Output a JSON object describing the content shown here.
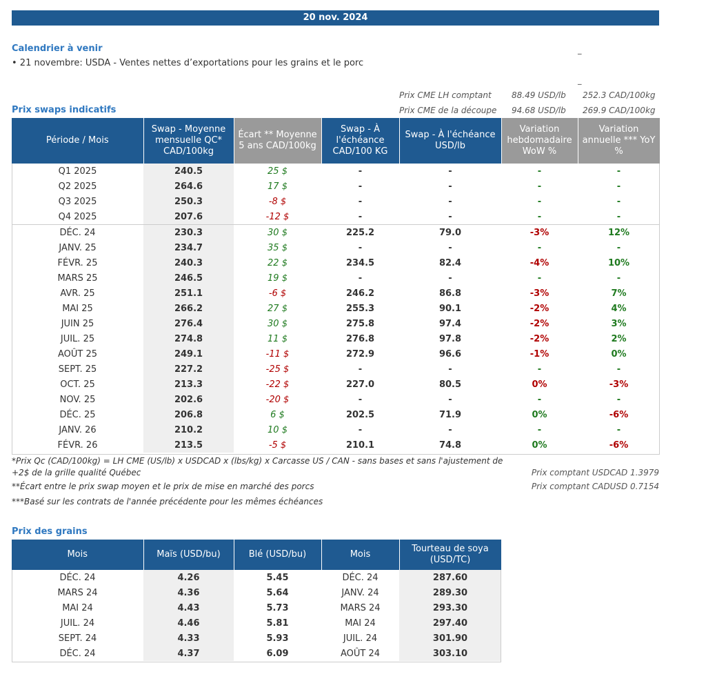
{
  "banner": {
    "date": "20 nov. 2024"
  },
  "calendar": {
    "title": "Calendrier à venir",
    "item": "• 21 novembre: USDA - Ventes nettes d’exportations pour les grains et le porc"
  },
  "reference": {
    "lh_label": "Prix CME LH comptant",
    "lh_usd": "88.49 USD/lb",
    "lh_cad": "252.3 CAD/100kg",
    "cut_label": "Prix CME de la découpe",
    "cut_usd": "94.68 USD/lb",
    "cut_cad": "269.9 CAD/100kg"
  },
  "swaps": {
    "title": "Prix swaps indicatifs",
    "headers": [
      "Période / Mois",
      "Swap - Moyenne mensuelle QC* CAD/100kg",
      "Écart ** Moyenne 5 ans CAD/100kg",
      "Swap - À l'échéance CAD/100 KG",
      "Swap - À l'échéance USD/lb",
      "Variation hebdomadaire WoW %",
      "Variation annuelle *** YoY %"
    ],
    "rows": [
      {
        "p": "Q1 2025",
        "swap": "240.5",
        "ecart": "25 $",
        "ecart_sign": "pos",
        "cad": "-",
        "usd": "-",
        "wow": "-",
        "wow_sign": "pos",
        "yoy": "-",
        "yoy_sign": "pos"
      },
      {
        "p": "Q2 2025",
        "swap": "264.6",
        "ecart": "17 $",
        "ecart_sign": "pos",
        "cad": "-",
        "usd": "-",
        "wow": "-",
        "wow_sign": "pos",
        "yoy": "-",
        "yoy_sign": "pos"
      },
      {
        "p": "Q3 2025",
        "swap": "250.3",
        "ecart": "-8 $",
        "ecart_sign": "neg",
        "cad": "-",
        "usd": "-",
        "wow": "-",
        "wow_sign": "pos",
        "yoy": "-",
        "yoy_sign": "pos"
      },
      {
        "p": "Q4 2025",
        "swap": "207.6",
        "ecart": "-12 $",
        "ecart_sign": "neg",
        "cad": "-",
        "usd": "-",
        "wow": "-",
        "wow_sign": "pos",
        "yoy": "-",
        "yoy_sign": "pos"
      },
      {
        "p": "DÉC. 24",
        "swap": "230.3",
        "ecart": "30 $",
        "ecart_sign": "pos",
        "cad": "225.2",
        "usd": "79.0",
        "wow": "-3%",
        "wow_sign": "neg",
        "yoy": "12%",
        "yoy_sign": "pos",
        "sep": true
      },
      {
        "p": "JANV. 25",
        "swap": "234.7",
        "ecart": "35 $",
        "ecart_sign": "pos",
        "cad": "-",
        "usd": "-",
        "wow": "-",
        "wow_sign": "pos",
        "yoy": "-",
        "yoy_sign": "pos"
      },
      {
        "p": "FÉVR. 25",
        "swap": "240.3",
        "ecart": "22 $",
        "ecart_sign": "pos",
        "cad": "234.5",
        "usd": "82.4",
        "wow": "-4%",
        "wow_sign": "neg",
        "yoy": "10%",
        "yoy_sign": "pos"
      },
      {
        "p": "MARS 25",
        "swap": "246.5",
        "ecart": "19 $",
        "ecart_sign": "pos",
        "cad": "-",
        "usd": "-",
        "wow": "-",
        "wow_sign": "pos",
        "yoy": "-",
        "yoy_sign": "pos"
      },
      {
        "p": "AVR. 25",
        "swap": "251.1",
        "ecart": "-6 $",
        "ecart_sign": "neg",
        "cad": "246.2",
        "usd": "86.8",
        "wow": "-3%",
        "wow_sign": "neg",
        "yoy": "7%",
        "yoy_sign": "pos"
      },
      {
        "p": "MAI 25",
        "swap": "266.2",
        "ecart": "27 $",
        "ecart_sign": "pos",
        "cad": "255.3",
        "usd": "90.1",
        "wow": "-2%",
        "wow_sign": "neg",
        "yoy": "4%",
        "yoy_sign": "pos"
      },
      {
        "p": "JUIN 25",
        "swap": "276.4",
        "ecart": "30 $",
        "ecart_sign": "pos",
        "cad": "275.8",
        "usd": "97.4",
        "wow": "-2%",
        "wow_sign": "neg",
        "yoy": "3%",
        "yoy_sign": "pos"
      },
      {
        "p": "JUIL. 25",
        "swap": "274.8",
        "ecart": "11 $",
        "ecart_sign": "pos",
        "cad": "276.8",
        "usd": "97.8",
        "wow": "-2%",
        "wow_sign": "neg",
        "yoy": "2%",
        "yoy_sign": "pos"
      },
      {
        "p": "AOÛT 25",
        "swap": "249.1",
        "ecart": "-11 $",
        "ecart_sign": "neg",
        "cad": "272.9",
        "usd": "96.6",
        "wow": "-1%",
        "wow_sign": "neg",
        "yoy": "0%",
        "yoy_sign": "pos"
      },
      {
        "p": "SEPT. 25",
        "swap": "227.2",
        "ecart": "-25 $",
        "ecart_sign": "neg",
        "cad": "-",
        "usd": "-",
        "wow": "-",
        "wow_sign": "pos",
        "yoy": "-",
        "yoy_sign": "pos"
      },
      {
        "p": "OCT. 25",
        "swap": "213.3",
        "ecart": "-22 $",
        "ecart_sign": "neg",
        "cad": "227.0",
        "usd": "80.5",
        "wow": "0%",
        "wow_sign": "neg",
        "yoy": "-3%",
        "yoy_sign": "neg"
      },
      {
        "p": "NOV. 25",
        "swap": "202.6",
        "ecart": "-20 $",
        "ecart_sign": "neg",
        "cad": "-",
        "usd": "-",
        "wow": "-",
        "wow_sign": "pos",
        "yoy": "-",
        "yoy_sign": "pos"
      },
      {
        "p": "DÉC. 25",
        "swap": "206.8",
        "ecart": "6 $",
        "ecart_sign": "pos",
        "cad": "202.5",
        "usd": "71.9",
        "wow": "0%",
        "wow_sign": "pos",
        "yoy": "-6%",
        "yoy_sign": "neg"
      },
      {
        "p": "JANV. 26",
        "swap": "210.2",
        "ecart": "10 $",
        "ecart_sign": "pos",
        "cad": "-",
        "usd": "-",
        "wow": "-",
        "wow_sign": "pos",
        "yoy": "-",
        "yoy_sign": "pos"
      },
      {
        "p": "FÉVR. 26",
        "swap": "213.5",
        "ecart": "-5 $",
        "ecart_sign": "neg",
        "cad": "210.1",
        "usd": "74.8",
        "wow": "0%",
        "wow_sign": "pos",
        "yoy": "-6%",
        "yoy_sign": "neg"
      }
    ]
  },
  "footnotes": {
    "note1a": "*Prix Qc (CAD/100kg) = LH CME (US/lb) x USDCAD x (lbs/kg) x Carcasse US / CAN - sans bases et sans l'ajustement de",
    "note1b": "+2$ de la grille qualité Québec",
    "note2": "**Écart entre le prix swap moyen et le prix de mise en marché des porcs",
    "note3": "***Basé sur les contrats de l'année précédente pour les mêmes échéances",
    "usdcad": "Prix comptant USDCAD 1.3979",
    "cadusd": "Prix comptant CADUSD 0.7154"
  },
  "grains": {
    "title": "Prix des grains",
    "headers": [
      "Mois",
      "Maïs (USD/bu)",
      "Blé (USD/bu)",
      "Mois",
      "Tourteau de soya (USD/TC)"
    ],
    "rows": [
      {
        "m1": "DÉC. 24",
        "mais": "4.26",
        "ble": "5.45",
        "m2": "DÉC. 24",
        "soya": "287.60"
      },
      {
        "m1": "MARS 24",
        "mais": "4.36",
        "ble": "5.64",
        "m2": "JANV. 24",
        "soya": "289.30"
      },
      {
        "m1": "MAI 24",
        "mais": "4.43",
        "ble": "5.73",
        "m2": "MARS 24",
        "soya": "293.30"
      },
      {
        "m1": "JUIL. 24",
        "mais": "4.46",
        "ble": "5.81",
        "m2": "MAI 24",
        "soya": "297.40"
      },
      {
        "m1": "SEPT. 24",
        "mais": "4.33",
        "ble": "5.93",
        "m2": "JUIL. 24",
        "soya": "301.90"
      },
      {
        "m1": "DÉC. 24",
        "mais": "4.37",
        "ble": "6.09",
        "m2": "AOÛT 24",
        "soya": "303.10"
      }
    ]
  }
}
